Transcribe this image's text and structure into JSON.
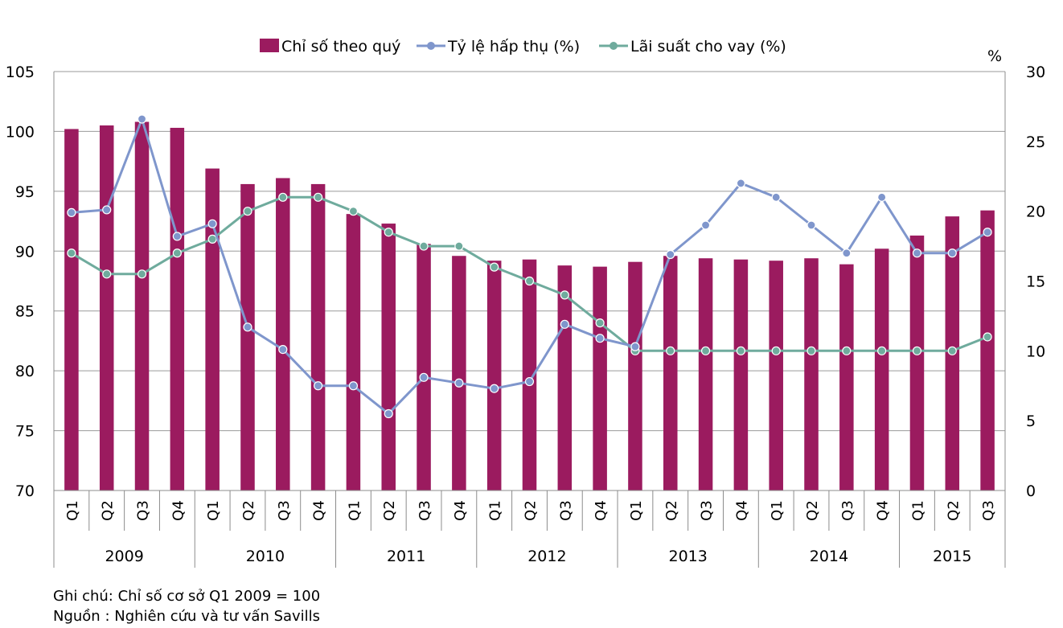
{
  "chart_data": {
    "type": "bar+line",
    "legend": [
      {
        "key": "index",
        "label": "Chỉ số theo quý",
        "marker": "bar",
        "color": "#9B1B5F"
      },
      {
        "key": "absorption",
        "label": "Tỷ lệ hấp thụ (%)",
        "marker": "line",
        "color": "#7F96CC"
      },
      {
        "key": "lending",
        "label": "Lãi suất cho vay (%)",
        "marker": "line",
        "color": "#6FAB9D"
      }
    ],
    "legend_position": "top-center",
    "y_left": {
      "min": 70,
      "max": 105,
      "ticks": [
        "70",
        "75",
        "80",
        "85",
        "90",
        "95",
        "100",
        "105"
      ]
    },
    "y_right": {
      "min": 0,
      "max": 30,
      "unit_label": "%",
      "ticks": [
        "0",
        "5",
        "10",
        "15",
        "20",
        "25",
        "30"
      ]
    },
    "grid": true,
    "quarters": [
      "Q1",
      "Q2",
      "Q3",
      "Q4",
      "Q1",
      "Q2",
      "Q3",
      "Q4",
      "Q1",
      "Q2",
      "Q3",
      "Q4",
      "Q1",
      "Q2",
      "Q3",
      "Q4",
      "Q1",
      "Q2",
      "Q3",
      "Q4",
      "Q1",
      "Q2",
      "Q3",
      "Q4",
      "Q1",
      "Q2",
      "Q3"
    ],
    "years": [
      {
        "label": "2009",
        "quarters": 4
      },
      {
        "label": "2010",
        "quarters": 4
      },
      {
        "label": "2011",
        "quarters": 4
      },
      {
        "label": "2012",
        "quarters": 4
      },
      {
        "label": "2013",
        "quarters": 4
      },
      {
        "label": "2014",
        "quarters": 4
      },
      {
        "label": "2015",
        "quarters": 3
      }
    ],
    "series": [
      {
        "name": "Chỉ số theo quý",
        "axis": "left",
        "type": "bar",
        "color": "#9B1B5F",
        "values": [
          100.2,
          100.5,
          100.8,
          100.3,
          96.9,
          95.6,
          96.1,
          95.6,
          93.1,
          92.3,
          90.6,
          89.6,
          89.2,
          89.3,
          88.8,
          88.7,
          89.1,
          89.6,
          89.4,
          89.3,
          89.2,
          89.4,
          88.9,
          90.2,
          91.3,
          92.9,
          93.4
        ]
      },
      {
        "name": "Tỷ lệ hấp thụ (%)",
        "axis": "right",
        "type": "line",
        "color": "#7F96CC",
        "values": [
          19.9,
          20.1,
          26.6,
          18.2,
          19.1,
          11.7,
          10.1,
          7.5,
          7.5,
          5.5,
          8.1,
          7.7,
          7.3,
          7.8,
          11.9,
          10.9,
          10.3,
          16.9,
          19.0,
          22.0,
          21.0,
          19.0,
          17.0,
          21.0,
          17.0,
          17.0,
          18.5
        ]
      },
      {
        "name": "Lãi suất cho vay (%)",
        "axis": "right",
        "type": "line",
        "color": "#6FAB9D",
        "values": [
          17.0,
          15.5,
          15.5,
          17.0,
          18.0,
          20.0,
          21.0,
          21.0,
          20.0,
          18.5,
          17.5,
          17.5,
          16.0,
          15.0,
          14.0,
          12.0,
          10.0,
          10.0,
          10.0,
          10.0,
          10.0,
          10.0,
          10.0,
          10.0,
          10.0,
          10.0,
          11.0
        ]
      }
    ]
  },
  "notes": {
    "note": "Ghi chú: Chỉ số cơ sở Q1 2009 = 100",
    "source": "Nguồn : Nghiên cứu và tư vấn Savills"
  }
}
